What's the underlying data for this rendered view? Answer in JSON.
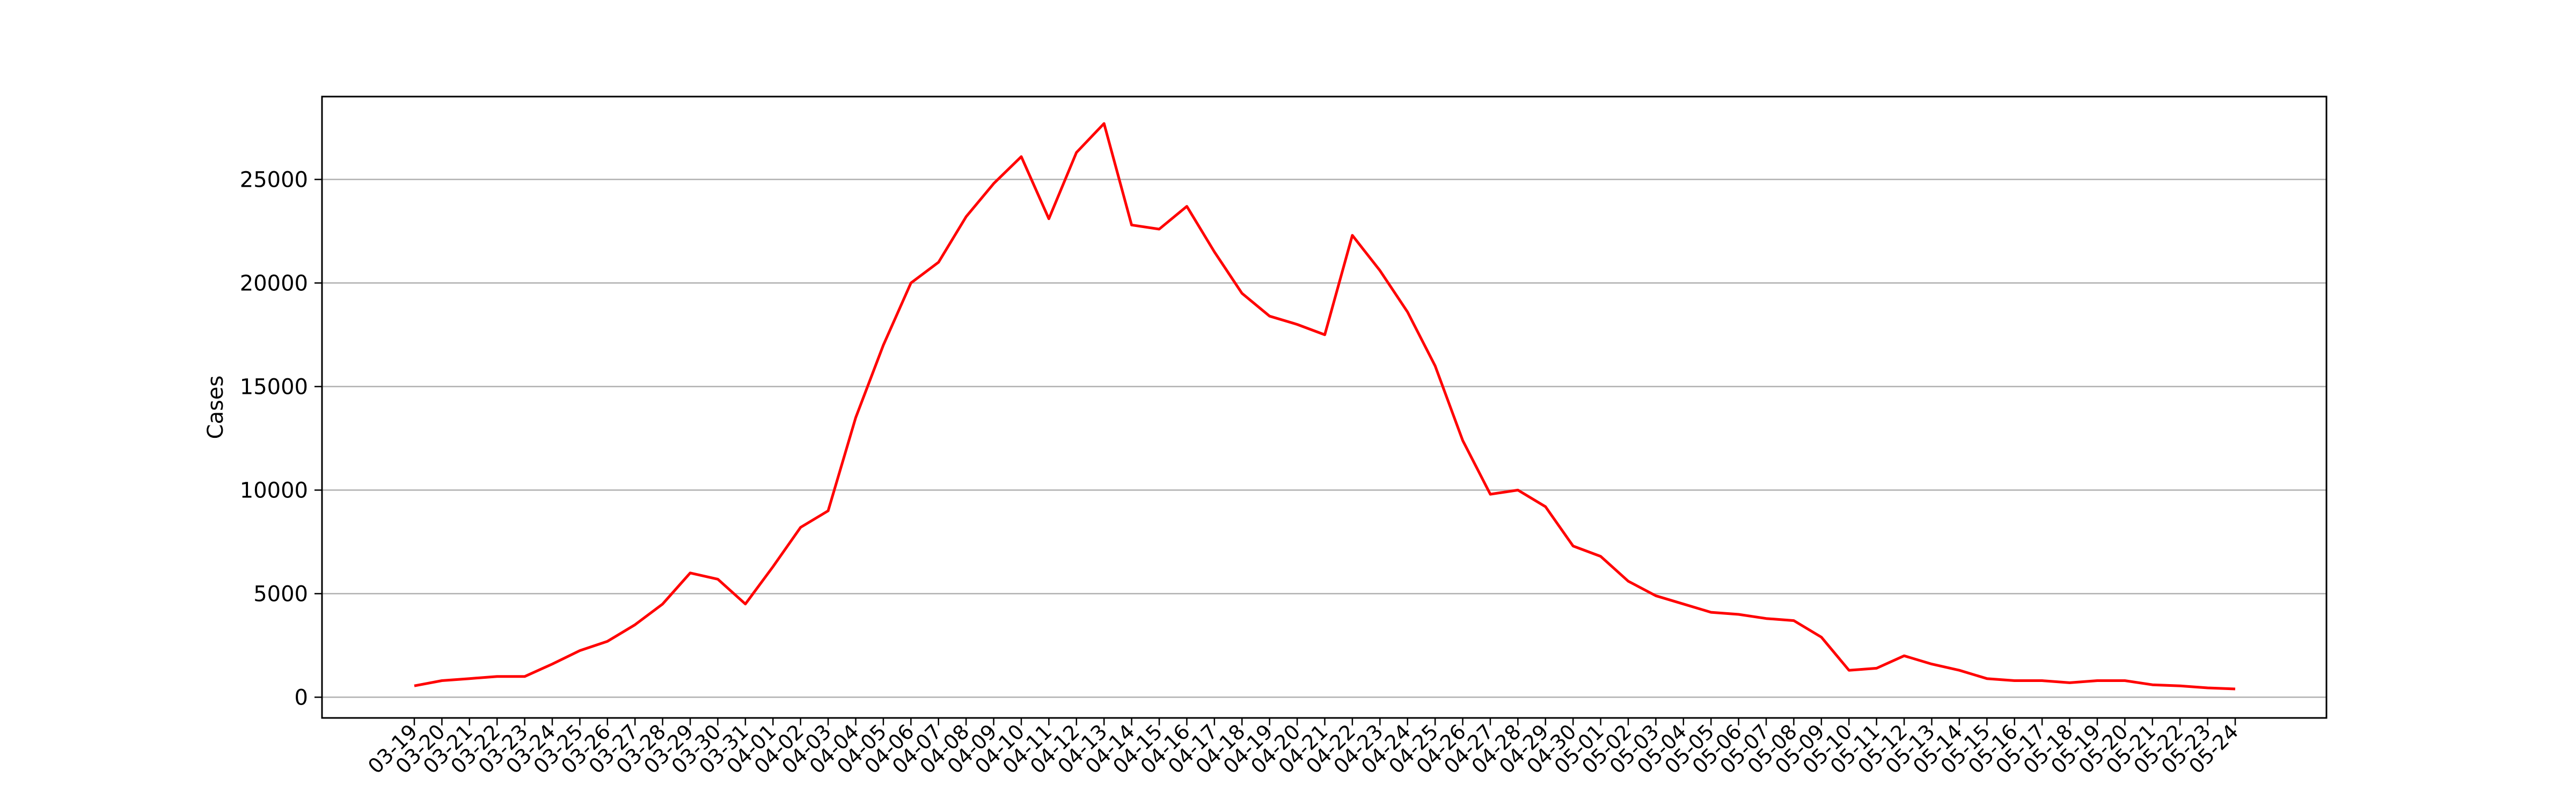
{
  "chart_data": {
    "type": "line",
    "title": "",
    "xlabel": "",
    "ylabel": "Cases",
    "ylim": [
      -1000,
      29000
    ],
    "yticks": [
      0,
      5000,
      10000,
      15000,
      20000,
      25000
    ],
    "grid": "y",
    "legend": "none",
    "line_color": "#ff0000",
    "x": [
      "03-19",
      "03-20",
      "03-21",
      "03-22",
      "03-23",
      "03-24",
      "03-25",
      "03-26",
      "03-27",
      "03-28",
      "03-29",
      "03-30",
      "03-31",
      "04-01",
      "04-02",
      "04-03",
      "04-04",
      "04-05",
      "04-06",
      "04-07",
      "04-08",
      "04-09",
      "04-10",
      "04-11",
      "04-12",
      "04-13",
      "04-14",
      "04-15",
      "04-16",
      "04-17",
      "04-18",
      "04-19",
      "04-20",
      "04-21",
      "04-22",
      "04-23",
      "04-24",
      "04-25",
      "04-26",
      "04-27",
      "04-28",
      "04-29",
      "04-30",
      "05-01",
      "05-02",
      "05-03",
      "05-04",
      "05-05",
      "05-06",
      "05-07",
      "05-08",
      "05-09",
      "05-10",
      "05-11",
      "05-12",
      "05-13",
      "05-14",
      "05-15",
      "05-16",
      "05-17",
      "05-18",
      "05-19",
      "05-20",
      "05-21",
      "05-22",
      "05-23",
      "05-24"
    ],
    "series": [
      {
        "values": [
          550,
          800,
          900,
          1000,
          1000,
          1600,
          2250,
          2700,
          3500,
          4500,
          6000,
          5700,
          4500,
          6300,
          8200,
          9000,
          13500,
          17000,
          20000,
          21000,
          23200,
          24800,
          26100,
          23100,
          26300,
          27700,
          22800,
          22600,
          23700,
          21500,
          19500,
          18400,
          18000,
          17500,
          22300,
          20600,
          18600,
          16000,
          12400,
          9800,
          10000,
          9200,
          7300,
          6800,
          5600,
          4900,
          4500,
          4100,
          4000,
          3800,
          3700,
          2900,
          1300,
          1400,
          2000,
          1600,
          1300,
          900,
          800,
          800,
          700,
          800,
          800,
          600,
          550,
          450,
          400
        ]
      }
    ]
  }
}
